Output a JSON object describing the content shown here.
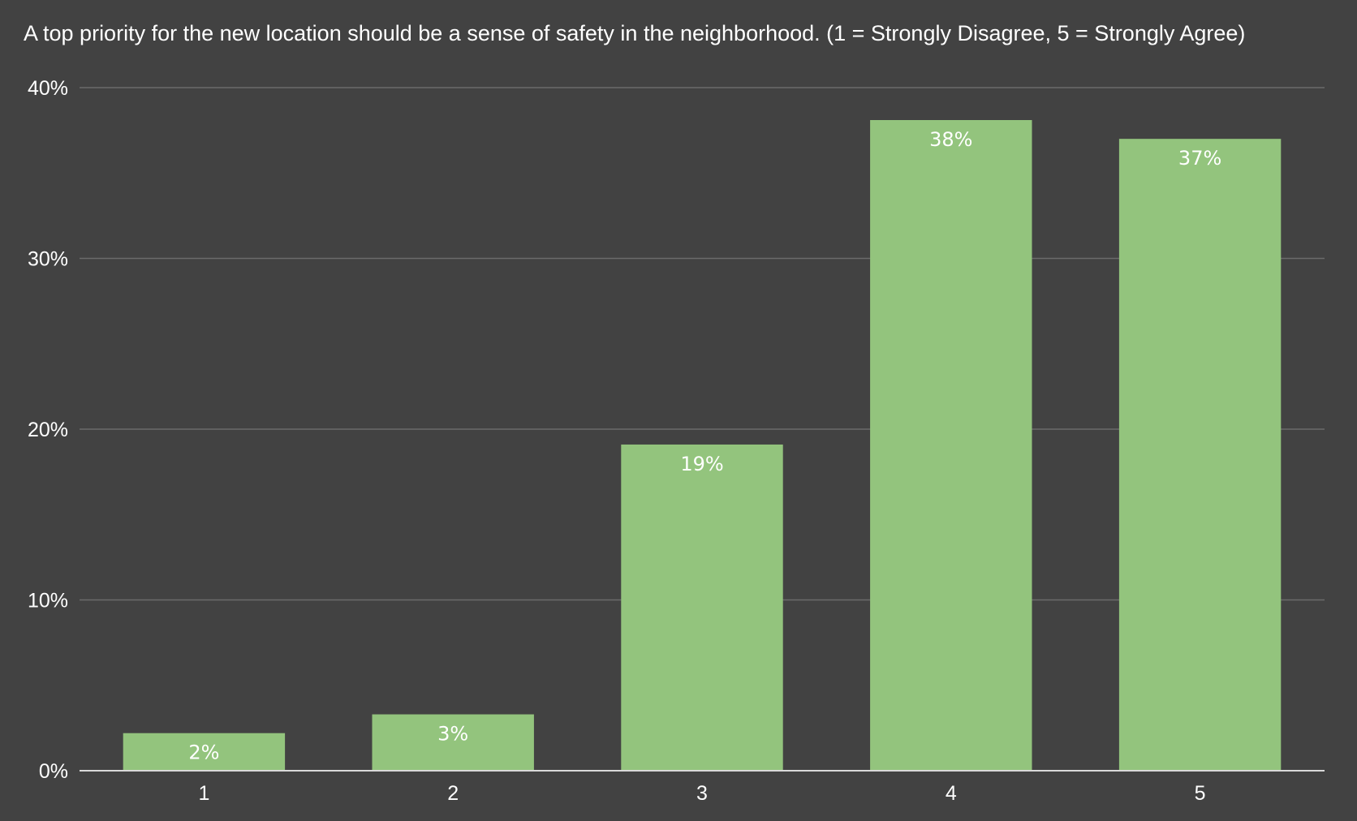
{
  "chart_data": {
    "type": "bar",
    "title": "A top priority for the new location should be a sense of safety in the neighborhood. (1 = Strongly Disagree, 5 = Strongly Agree)",
    "xlabel": "",
    "ylabel": "",
    "categories": [
      "1",
      "2",
      "3",
      "4",
      "5"
    ],
    "values": [
      2.2,
      3.3,
      19.1,
      38.1,
      37.0
    ],
    "data_labels": [
      "2%",
      "3%",
      "19%",
      "38%",
      "37%"
    ],
    "ylim": [
      0,
      40
    ],
    "yticks": [
      0,
      10,
      20,
      30,
      40
    ],
    "ytick_labels": [
      "0%",
      "10%",
      "20%",
      "30%",
      "40%"
    ],
    "grid": true,
    "legend": "none",
    "colors": {
      "background": "#424242",
      "bar": "#93c47d",
      "grid": "#6b6b6b",
      "axis": "#d9d9d9",
      "text": "#ffffff"
    }
  }
}
